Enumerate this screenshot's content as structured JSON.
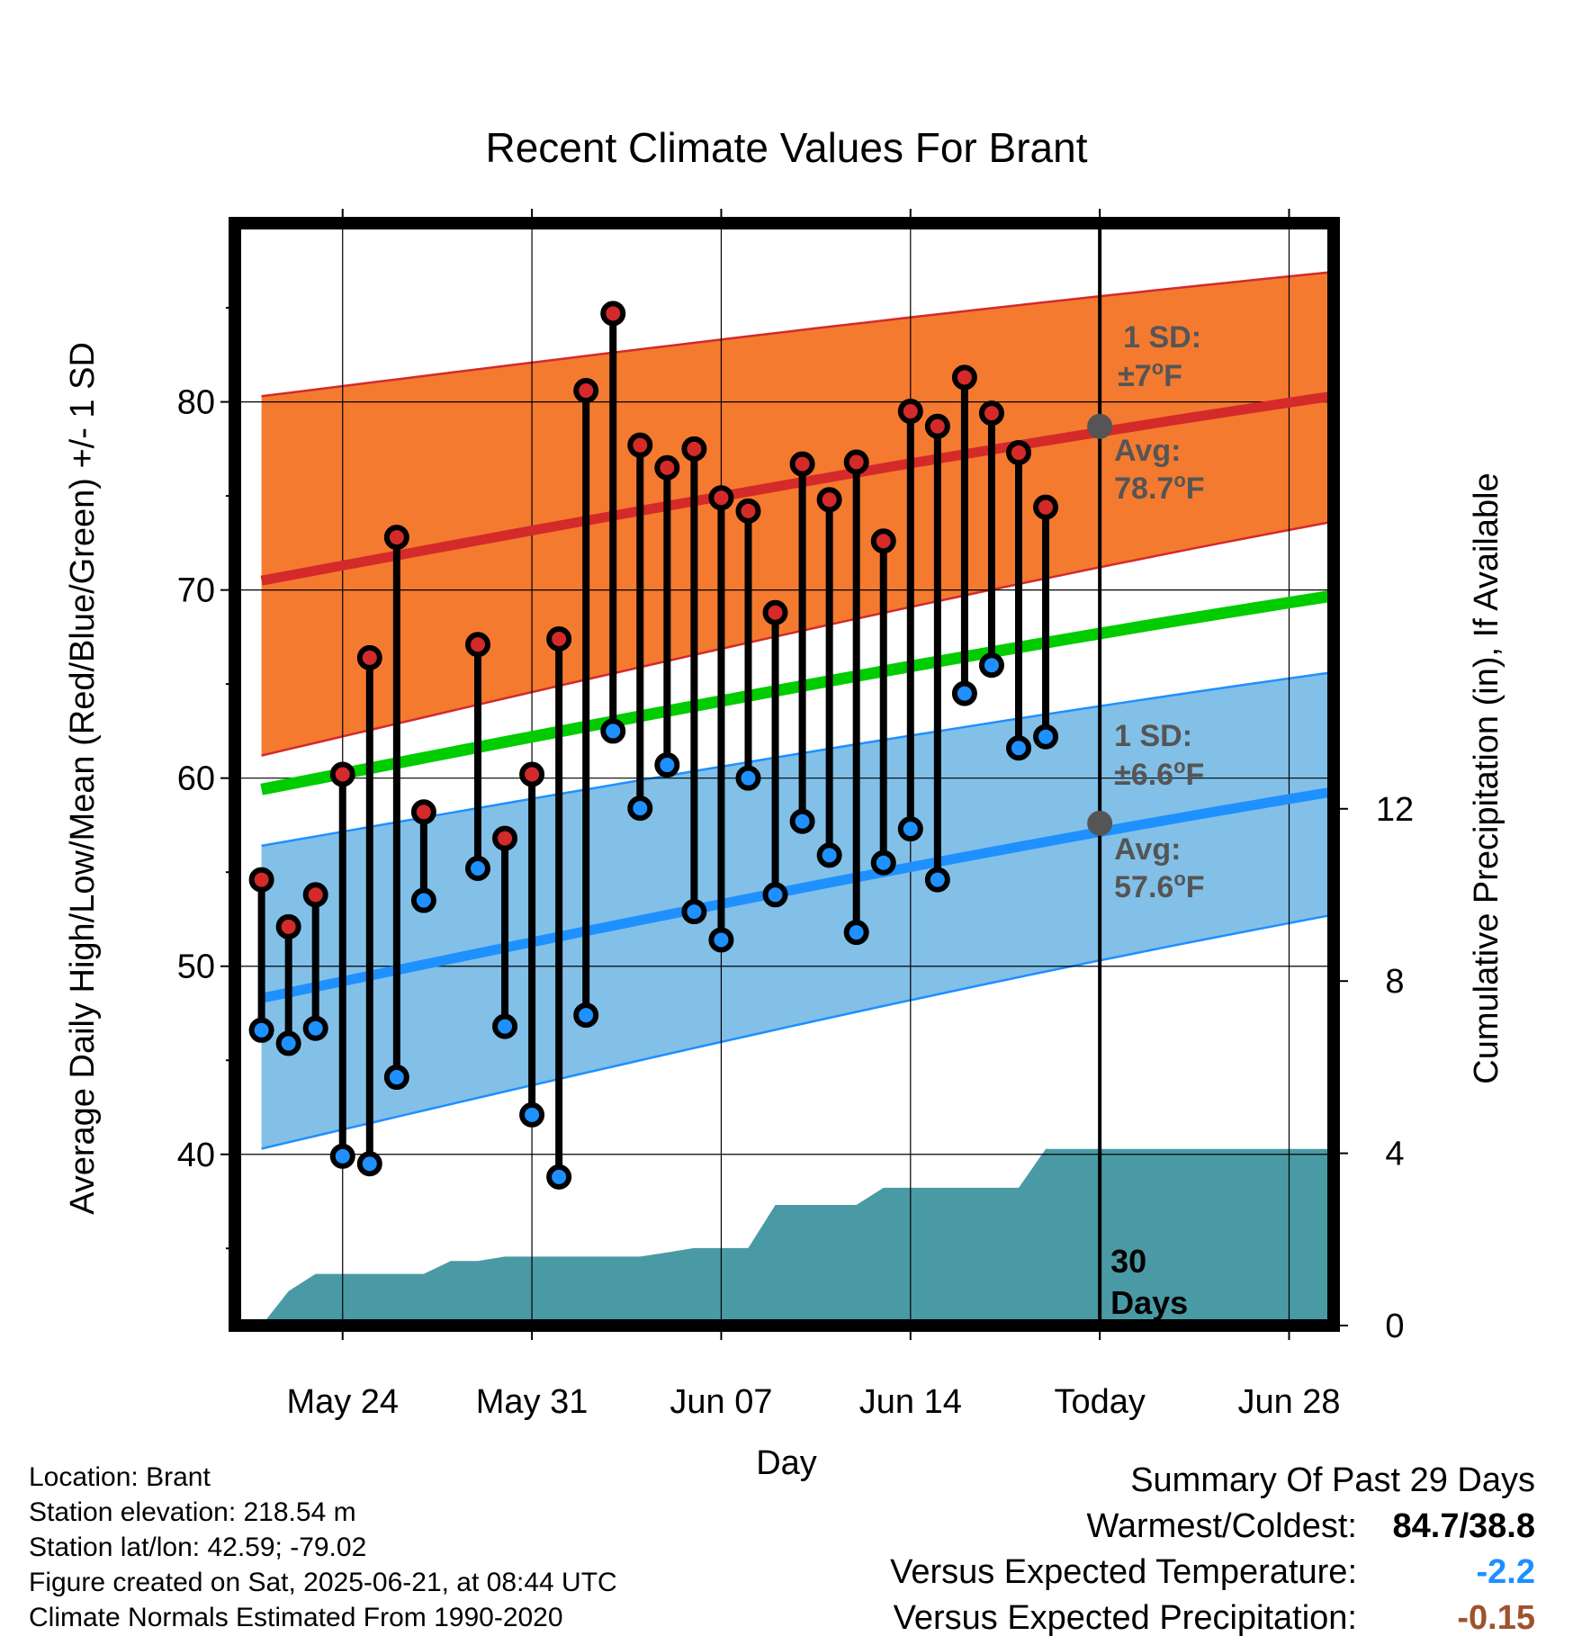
{
  "chart_data": {
    "type": "line",
    "title": "Recent Climate Values For Brant",
    "xlabel": "Day",
    "ylabel": "Average Daily High/Low/Mean (Red/Blue/Green) +/- 1 SD",
    "y2label": "Cumulative Precipitation (in), If Available",
    "x_tick_labels": [
      "May 24",
      "May 31",
      "Jun 07",
      "Jun 14",
      "Today",
      "Jun 28"
    ],
    "y_ticks": [
      40,
      50,
      60,
      70,
      80
    ],
    "y2_ticks": [
      0,
      4,
      8,
      12
    ],
    "ylim": [
      30.9,
      89.5
    ],
    "y2lim": [
      0,
      25.6
    ],
    "days": [
      "May 21",
      "May 22",
      "May 23",
      "May 24",
      "May 25",
      "May 26",
      "May 27",
      "May 28",
      "May 29",
      "May 30",
      "May 31",
      "Jun 01",
      "Jun 02",
      "Jun 03",
      "Jun 04",
      "Jun 05",
      "Jun 06",
      "Jun 07",
      "Jun 08",
      "Jun 09",
      "Jun 10",
      "Jun 11",
      "Jun 12",
      "Jun 13",
      "Jun 14",
      "Jun 15",
      "Jun 16",
      "Jun 17",
      "Jun 18",
      "Jun 19",
      "Jun 20",
      "Jun 21",
      "Jun 22",
      "Jun 23",
      "Jun 24",
      "Jun 25",
      "Jun 26",
      "Jun 27",
      "Jun 28",
      "Jun 29",
      "Jun 30",
      "Jul 01"
    ],
    "series": [
      {
        "name": "Daily High",
        "color": "#d42a2a",
        "values": [
          54.6,
          52.1,
          53.8,
          60.2,
          66.4,
          72.8,
          58.2,
          null,
          67.1,
          56.8,
          60.2,
          67.4,
          80.6,
          84.7,
          77.7,
          76.5,
          77.5,
          74.9,
          74.2,
          68.8,
          76.7,
          74.8,
          76.8,
          72.6,
          79.5,
          78.7,
          81.3,
          79.4,
          77.3,
          74.4
        ]
      },
      {
        "name": "Daily Low",
        "color": "#1e90ff",
        "values": [
          46.6,
          45.9,
          46.7,
          39.9,
          39.5,
          44.1,
          53.5,
          null,
          55.2,
          46.8,
          42.1,
          38.8,
          47.4,
          62.5,
          58.4,
          60.7,
          52.9,
          51.4,
          60.0,
          53.8,
          57.7,
          55.9,
          51.8,
          55.5,
          57.3,
          54.6,
          64.5,
          66.0,
          61.6,
          62.2
        ]
      },
      {
        "name": "Normal High",
        "color": "#d42a2a",
        "start": 70.5,
        "end": 80.6,
        "sd_band": [
          61.2,
          80.3,
          74.0,
          87.1
        ]
      },
      {
        "name": "Normal Low",
        "color": "#1e90ff",
        "start": 48.3,
        "end": 59.6,
        "sd_band": [
          40.3,
          56.4,
          53.1,
          65.9
        ]
      },
      {
        "name": "Normal Mean",
        "color": "#00cc00",
        "start": 59.4,
        "end": 70.0
      },
      {
        "name": "Cumulative Precipitation",
        "color": "#4a9aa5",
        "values": [
          0.0,
          0.8,
          1.2,
          1.2,
          1.2,
          1.2,
          1.2,
          1.5,
          1.5,
          1.6,
          1.6,
          1.6,
          1.6,
          1.6,
          1.6,
          1.7,
          1.8,
          1.8,
          1.8,
          2.8,
          2.8,
          2.8,
          2.8,
          3.2,
          3.2,
          3.2,
          3.2,
          3.2,
          3.2,
          4.1,
          4.1
        ]
      }
    ],
    "annotations": {
      "high_sd": {
        "line1": "1 SD:",
        "line2": "±7",
        "unit": "F"
      },
      "high_avg": {
        "line1": "Avg:",
        "line2": "78.7",
        "unit": "F",
        "value": 78.7
      },
      "low_sd": {
        "line1": "1 SD:",
        "line2": "±6.6",
        "unit": "F"
      },
      "low_avg": {
        "line1": "Avg:",
        "line2": "57.6",
        "unit": "F",
        "value": 57.6
      },
      "degree": "o",
      "period_line1": "30",
      "period_line2": "Days"
    },
    "colors": {
      "high_band": "#f47a30",
      "low_band": "#82c0e8",
      "precip": "#4a9aa5"
    },
    "grid": true,
    "legend": "none"
  },
  "footer": {
    "location": "Location: Brant",
    "elevation": "Station elevation: 218.54 m",
    "latlon": "Station lat/lon: 42.59; -79.02",
    "created": "Figure created on Sat, 2025-06-21, at 08:44 UTC",
    "normals": "Climate Normals Estimated From 1990-2020"
  },
  "summary": {
    "title": "Summary Of Past 29 Days",
    "warmest_coldest_label": "Warmest/Coldest:",
    "warmest_coldest_value": "84.7/38.8",
    "temp_label": "Versus Expected Temperature:",
    "temp_value": "-2.2",
    "precip_label": "Versus Expected Precipitation:",
    "precip_value": "-0.15"
  }
}
